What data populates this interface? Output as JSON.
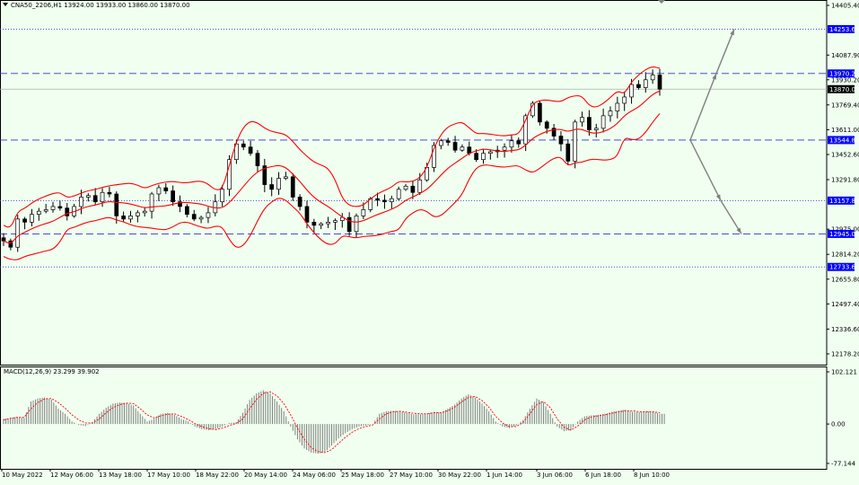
{
  "header": {
    "symbol_line": "CNA50_2206,H1  13924.00 13933.00 13860.00 13870.00",
    "macd_line": "MACD(12,26,9) 23.299 39.902"
  },
  "colors": {
    "background": "#f0fff0",
    "band": "#ff0000",
    "candle": "#000000",
    "level_line": "#3333cc",
    "label_bg": "#0000ff",
    "price_label_bg": "#000000",
    "arrow": "#808080",
    "macd_hist": "#808080",
    "macd_signal": "#ff0000"
  },
  "chart_data": {
    "type": "candlestick",
    "symbol": "CNA50_2206",
    "timeframe": "H1",
    "last_bar": {
      "open": 13924.0,
      "high": 13933.0,
      "low": 13860.0,
      "close": 13870.0
    },
    "y_ticks": [
      "14405.40",
      "14087.90",
      "13930.20",
      "13769.40",
      "13611.00",
      "13452.60",
      "13291.80",
      "12975.00",
      "12814.20",
      "12655.80",
      "12497.40",
      "12336.60",
      "12178.20"
    ],
    "x_ticks": [
      "10 May 2022",
      "12 May 06:00",
      "13 May 18:00",
      "17 May 10:00",
      "18 May 22:00",
      "20 May 14:00",
      "24 May 06:00",
      "25 May 18:00",
      "27 May 10:00",
      "30 May 22:00",
      "1 Jun 14:00",
      "3 Jun 06:00",
      "6 Jun 18:00",
      "8 Jun 10:00"
    ],
    "levels": [
      {
        "value": 14253.68,
        "label": "14253.68",
        "style": "dotted"
      },
      {
        "value": 13970.21,
        "label": "13970.21",
        "style": "dashed"
      },
      {
        "value": 13544.84,
        "label": "13544.84",
        "style": "dashed"
      },
      {
        "value": 13157.84,
        "label": "13157.84",
        "style": "dotted"
      },
      {
        "value": 12945.04,
        "label": "12945.04",
        "style": "dashed"
      },
      {
        "value": 12733.68,
        "label": "12733.68",
        "style": "dotted"
      }
    ],
    "current_price": {
      "value": 13870.0,
      "label": "13870.00"
    },
    "closes_sampled": [
      12900,
      12860,
      13040,
      13020,
      13070,
      13090,
      13100,
      13120,
      13110,
      13060,
      13120,
      13180,
      13190,
      13150,
      13210,
      13200,
      13060,
      13040,
      13060,
      13080,
      13090,
      13200,
      13240,
      13220,
      13150,
      13120,
      13070,
      13040,
      13050,
      13080,
      13150,
      13230,
      13420,
      13520,
      13500,
      13460,
      13380,
      13260,
      13230,
      13300,
      13310,
      13180,
      13120,
      13020,
      13000,
      13010,
      13020,
      13030,
      13050,
      12960,
      13060,
      13100,
      13170,
      13160,
      13150,
      13170,
      13230,
      13250,
      13210,
      13290,
      13370,
      13510,
      13540,
      13530,
      13480,
      13500,
      13460,
      13420,
      13460,
      13470,
      13480,
      13500,
      13540,
      13520,
      13700,
      13780,
      13660,
      13620,
      13570,
      13520,
      13410,
      13660,
      13690,
      13610,
      13620,
      13700,
      13730,
      13780,
      13820,
      13900,
      13880,
      13930,
      13960,
      13870
    ],
    "macd": {
      "y_ticks": [
        "102.121",
        "0.00",
        "-77.144"
      ],
      "histogram_sampled": [
        10,
        12,
        14,
        12,
        44,
        50,
        52,
        48,
        30,
        20,
        5,
        -2,
        -4,
        4,
        20,
        32,
        40,
        42,
        41,
        36,
        20,
        5,
        10,
        20,
        22,
        18,
        10,
        5,
        -5,
        -10,
        -12,
        -10,
        -5,
        2,
        3,
        22,
        47,
        60,
        66,
        60,
        44,
        25,
        -5,
        -30,
        -48,
        -56,
        -58,
        -55,
        -42,
        -28,
        -18,
        -10,
        -5,
        -3,
        0,
        20,
        25,
        26,
        24,
        22,
        19,
        19,
        20,
        24,
        22,
        30,
        38,
        50,
        58,
        52,
        40,
        25,
        5,
        -5,
        -8,
        -3,
        8,
        30,
        50,
        42,
        20,
        -5,
        -14,
        -12,
        5,
        15,
        17,
        18,
        20,
        24,
        26,
        28,
        24,
        23,
        25,
        24,
        20
      ],
      "signal_sampled": [
        8,
        11,
        13,
        13,
        30,
        42,
        49,
        50,
        42,
        31,
        18,
        8,
        2,
        2,
        10,
        22,
        32,
        38,
        41,
        40,
        30,
        18,
        12,
        16,
        19,
        20,
        15,
        9,
        1,
        -5,
        -9,
        -11,
        -8,
        -3,
        1,
        10,
        30,
        48,
        60,
        63,
        55,
        40,
        18,
        -8,
        -30,
        -46,
        -54,
        -56,
        -50,
        -38,
        -26,
        -16,
        -9,
        -5,
        -2,
        10,
        20,
        24,
        25,
        23,
        21,
        20,
        20,
        22,
        22,
        26,
        33,
        43,
        52,
        54,
        46,
        33,
        15,
        2,
        -5,
        -5,
        3,
        20,
        38,
        44,
        32,
        10,
        -6,
        -12,
        -4,
        8,
        14,
        16,
        18,
        21,
        24,
        26,
        26,
        24,
        24,
        24,
        22
      ]
    }
  }
}
